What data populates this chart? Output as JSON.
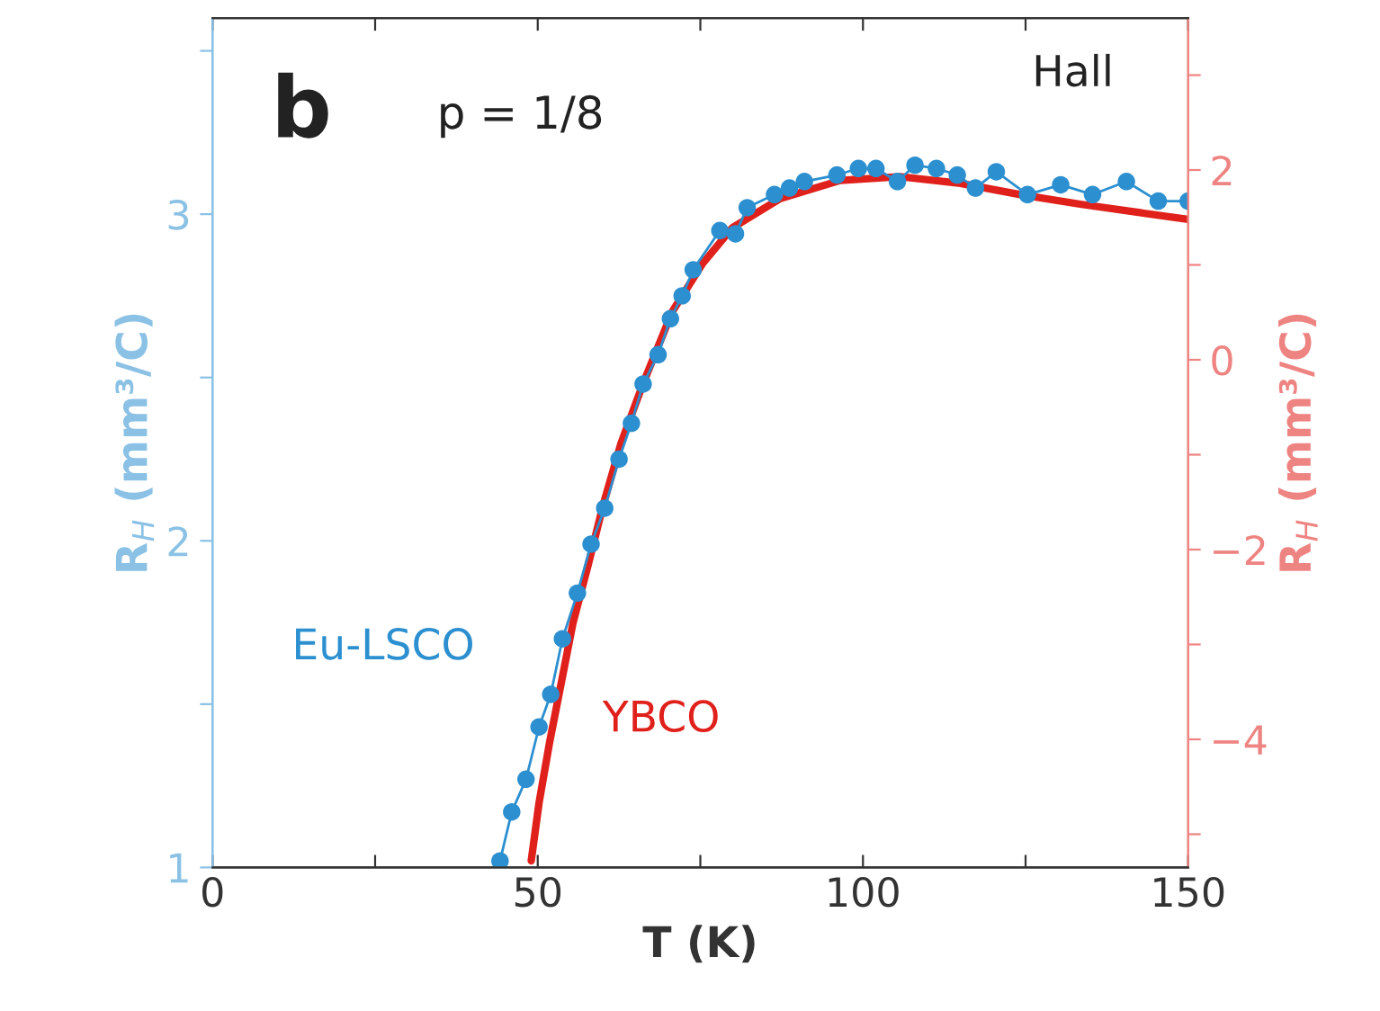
{
  "chart_data": {
    "type": "line",
    "xlabel": "T (K)",
    "ylabel": "R$_{H}$ (mm³/C)",
    "y2label": "R$_{H}$ (mm³/C)",
    "annotations": [
      "b",
      "p = 1/8",
      "Hall"
    ],
    "xlim": [
      0,
      150
    ],
    "xticks": [
      0,
      {
        "value": 25,
        "label": null
      },
      50,
      {
        "value": 75,
        "label": null
      },
      100,
      {
        "value": 125,
        "label": null
      },
      150
    ],
    "ylim": [
      1,
      3.6
    ],
    "yticks": [
      1,
      {
        "value": 1.5,
        "label": null
      },
      2,
      {
        "value": 2.5,
        "label": null
      },
      3,
      {
        "value": 3.5,
        "label": null
      }
    ],
    "y2lim": [
      -5.35,
      3.6
    ],
    "y2ticks": [
      {
        "value": -5,
        "label": null
      },
      {
        "value": -4,
        "label": "−4"
      },
      {
        "value": -3,
        "label": null
      },
      {
        "value": -2,
        "label": "−2"
      },
      {
        "value": -1,
        "label": null
      },
      0,
      {
        "value": 1,
        "label": null
      },
      2,
      {
        "value": 3,
        "label": null
      }
    ],
    "series": [
      {
        "name": "Eu-LSCO",
        "color": "#2b8fd0",
        "marker": "circle",
        "x": [
          44.2,
          46.0,
          48.2,
          50.2,
          52.0,
          53.8,
          56.1,
          58.2,
          60.3,
          62.5,
          64.4,
          66.2,
          68.5,
          70.4,
          72.2,
          73.9,
          78.0,
          80.4,
          82.2,
          86.4,
          88.7,
          91.0,
          96.0,
          99.3,
          102.0,
          105.3,
          108.0,
          111.3,
          114.5,
          117.3,
          120.5,
          125.3,
          130.4,
          135.3,
          140.5,
          145.4,
          150.0
        ],
        "values": [
          1.02,
          1.17,
          1.27,
          1.43,
          1.53,
          1.7,
          1.84,
          1.99,
          2.1,
          2.25,
          2.36,
          2.48,
          2.57,
          2.68,
          2.75,
          2.83,
          2.95,
          2.94,
          3.02,
          3.06,
          3.08,
          3.1,
          3.12,
          3.14,
          3.14,
          3.1,
          3.15,
          3.14,
          3.12,
          3.08,
          3.13,
          3.06,
          3.09,
          3.06,
          3.1,
          3.04,
          3.04
        ]
      },
      {
        "name": "YBCO",
        "color": "#e0201b",
        "axis": "y2",
        "x": [
          49.0,
          50.2,
          51.8,
          53.6,
          55.4,
          57.8,
          60.1,
          62.8,
          66.2,
          70.7,
          75.3,
          79.9,
          87.3,
          96.5,
          105.7,
          115.0,
          124.2,
          133.4,
          142.6,
          150.0
        ],
        "values": [
          -5.28,
          -4.67,
          -4.04,
          -3.41,
          -2.78,
          -2.15,
          -1.52,
          -0.88,
          -0.25,
          0.51,
          1.01,
          1.39,
          1.7,
          1.89,
          1.93,
          1.86,
          1.74,
          1.64,
          1.55,
          1.48
        ]
      }
    ]
  }
}
